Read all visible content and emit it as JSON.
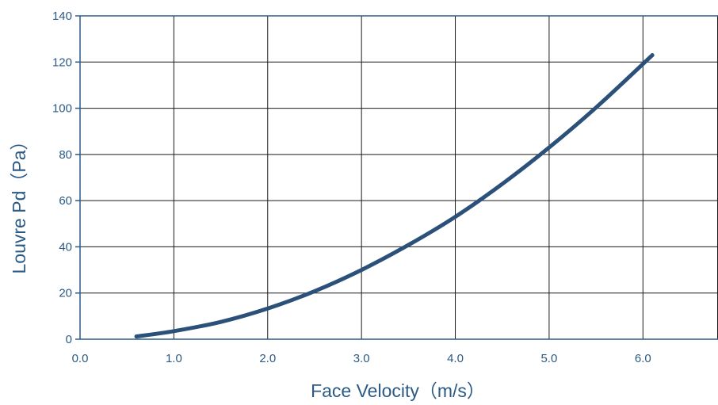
{
  "chart_data": {
    "type": "line",
    "title": "",
    "xlabel": "Face Velocity（m/s）",
    "ylabel": "Louvre Pd（Pa）",
    "xlim": [
      0.0,
      6.8
    ],
    "ylim": [
      0,
      140
    ],
    "x_ticks": [
      0.0,
      1.0,
      2.0,
      3.0,
      4.0,
      5.0,
      6.0
    ],
    "x_tick_labels": [
      "0.0",
      "1.0",
      "2.0",
      "3.0",
      "4.0",
      "5.0",
      "6.0"
    ],
    "y_ticks": [
      0,
      20,
      40,
      60,
      80,
      100,
      120,
      140
    ],
    "y_tick_labels": [
      "0",
      "20",
      "40",
      "60",
      "80",
      "100",
      "120",
      "140"
    ],
    "grid": true,
    "legend": "none",
    "colors": {
      "line": "#2b5079",
      "axis_text": "#2b5a85",
      "grid": "#1a1a1a",
      "frame": "#2b5a85"
    },
    "series": [
      {
        "x": [
          0.6,
          1.0,
          1.5,
          2.0,
          2.5,
          3.0,
          3.5,
          4.0,
          4.5,
          5.0,
          5.5,
          6.1
        ],
        "values": [
          1.2,
          3.5,
          7.5,
          13.3,
          20.8,
          30.0,
          40.8,
          53.0,
          67.2,
          83.0,
          100.3,
          123.0
        ]
      }
    ]
  }
}
